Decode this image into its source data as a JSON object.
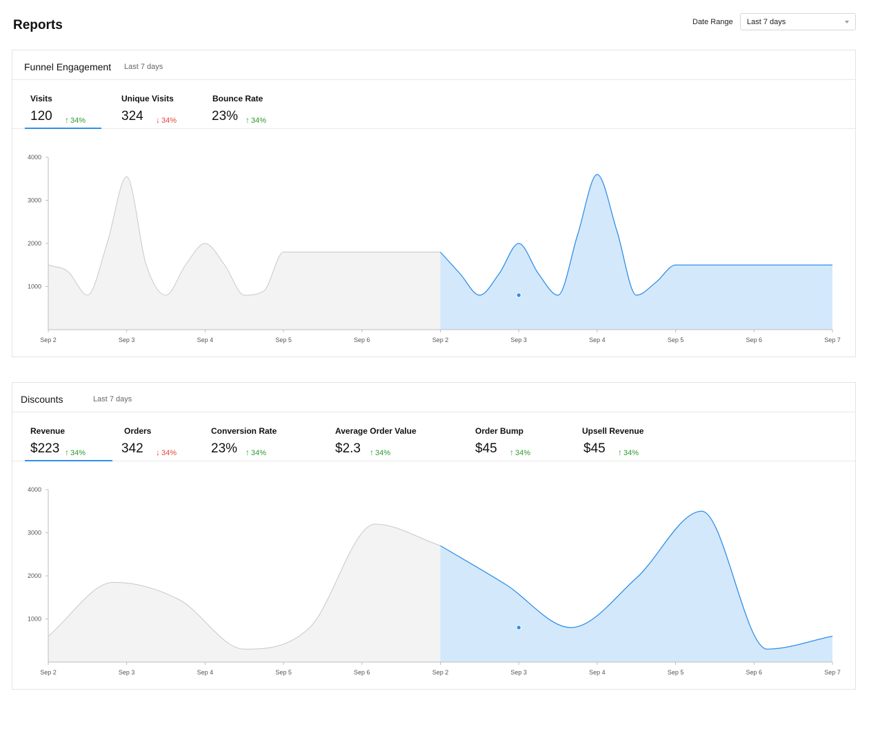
{
  "page": {
    "title": "Reports"
  },
  "date_range": {
    "label": "Date Range",
    "value": "Last 7 days"
  },
  "colors": {
    "accent": "#2f8fe8",
    "accent_fill": "#d4e8fb",
    "gray_line": "#c8c8c8",
    "gray_fill": "#f3f3f3",
    "up": "#2e9a2e",
    "down": "#e5453a"
  },
  "funnel": {
    "title": "Funnel Engagement",
    "subtitle": "Last 7 days",
    "metrics": [
      {
        "label": "Visits",
        "value": "120",
        "change": "34%",
        "direction": "up",
        "active": true
      },
      {
        "label": "Unique Visits",
        "value": "324",
        "change": "34%",
        "direction": "down",
        "active": false
      },
      {
        "label": "Bounce Rate",
        "value": "23%",
        "change": "34%",
        "direction": "up",
        "active": false
      }
    ]
  },
  "discounts": {
    "title": "Discounts",
    "subtitle": "Last 7 days",
    "metrics": [
      {
        "label": "Revenue",
        "value": "$223",
        "change": "34%",
        "direction": "up",
        "active": true
      },
      {
        "label": "Orders",
        "value": "342",
        "change": "34%",
        "direction": "down",
        "active": false
      },
      {
        "label": "Conversion Rate",
        "value": "23%",
        "change": "34%",
        "direction": "up",
        "active": false
      },
      {
        "label": "Average Order Value",
        "value": "$2.3",
        "change": "34%",
        "direction": "up",
        "active": false
      },
      {
        "label": "Order Bump",
        "value": "$45",
        "change": "34%",
        "direction": "up",
        "active": false
      },
      {
        "label": "Upsell Revenue",
        "value": "$45",
        "change": "34%",
        "direction": "up",
        "active": false
      }
    ]
  },
  "chart_data": [
    {
      "type": "area",
      "title": "",
      "xlabel": "",
      "ylabel": "",
      "ylim": [
        0,
        4000
      ],
      "yticks": [
        1000,
        2000,
        3000,
        4000
      ],
      "grid": false,
      "x_tick_labels": [
        "Sep 2",
        "Sep 3",
        "Sep 4",
        "Sep 5",
        "Sep 6",
        "Sep 2",
        "Sep 3",
        "Sep 4",
        "Sep 5",
        "Sep 6",
        "Sep 7"
      ],
      "series": [
        {
          "period": "previous",
          "x": [
            0,
            0.25,
            0.5,
            0.75,
            1,
            1.25,
            1.5,
            1.75,
            2,
            2.25,
            2.5,
            2.75,
            3,
            3.25,
            3.5,
            3.75,
            4,
            4.25,
            4.5,
            4.75,
            5
          ],
          "values": [
            1500,
            1350,
            800,
            2000,
            3550,
            1500,
            800,
            1500,
            2000,
            1500,
            800,
            900,
            1800,
            1800,
            1800,
            1800,
            1800,
            1800,
            1800,
            1800,
            1800
          ]
        },
        {
          "period": "current",
          "x": [
            5,
            5.25,
            5.5,
            5.75,
            6,
            6.25,
            6.5,
            6.75,
            7,
            7.25,
            7.5,
            7.75,
            8,
            8.25,
            8.5,
            8.75,
            9,
            9.25,
            9.5,
            9.75,
            10
          ],
          "values": [
            1800,
            1300,
            800,
            1300,
            2000,
            1300,
            800,
            2200,
            3600,
            2300,
            800,
            1100,
            1500,
            1500,
            1500,
            1500,
            1500,
            1500,
            1500,
            1500,
            1500
          ]
        }
      ],
      "highlight_point": {
        "x": 6,
        "y": 800
      }
    },
    {
      "type": "area",
      "title": "",
      "xlabel": "",
      "ylabel": "",
      "ylim": [
        0,
        4000
      ],
      "yticks": [
        1000,
        2000,
        3000,
        4000
      ],
      "grid": false,
      "x_tick_labels": [
        "Sep 2",
        "Sep 3",
        "Sep 4",
        "Sep 5",
        "Sep 6",
        "Sep 2",
        "Sep 3",
        "Sep 4",
        "Sep 5",
        "Sep 6",
        "Sep 7"
      ],
      "series": [
        {
          "period": "previous",
          "values": [
            600,
            1850,
            1450,
            300,
            800,
            3200,
            2700
          ]
        },
        {
          "period": "current",
          "values": [
            2700,
            1800,
            800,
            1950,
            3500,
            300,
            600
          ]
        }
      ],
      "highlight_point": {
        "x": 6,
        "y": 800
      }
    }
  ]
}
